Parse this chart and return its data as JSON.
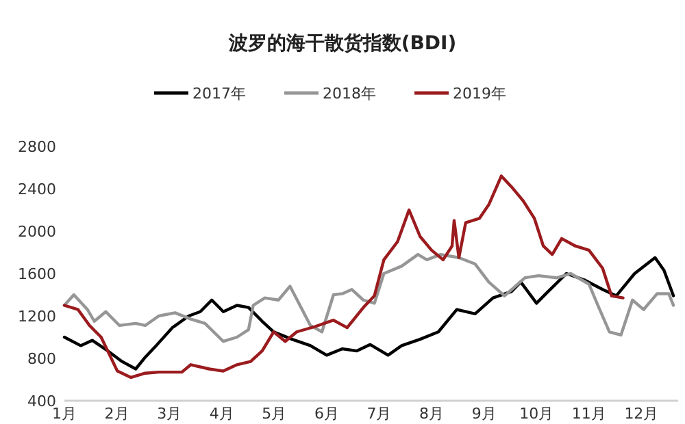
{
  "chart_data": {
    "type": "line",
    "title": "波罗的海干散货指数(BDI)",
    "xlim": [
      1,
      12.7
    ],
    "xticks": [
      {
        "value": 1,
        "label": "1月"
      },
      {
        "value": 2,
        "label": "2月"
      },
      {
        "value": 3,
        "label": "3月"
      },
      {
        "value": 4,
        "label": "4月"
      },
      {
        "value": 5,
        "label": "5月"
      },
      {
        "value": 6,
        "label": "6月"
      },
      {
        "value": 7,
        "label": "7月"
      },
      {
        "value": 8,
        "label": "8月"
      },
      {
        "value": 9,
        "label": "9月"
      },
      {
        "value": 10,
        "label": "10月"
      },
      {
        "value": 11,
        "label": "11月"
      },
      {
        "value": 12,
        "label": "12月"
      }
    ],
    "ylim": [
      400,
      2800
    ],
    "yticks": [
      400,
      800,
      1200,
      1600,
      2000,
      2400,
      2800
    ],
    "legend": "top",
    "series": [
      {
        "name": "2017年",
        "color": "#000000",
        "x": [
          1.0,
          1.31,
          1.53,
          1.83,
          2.1,
          2.36,
          2.54,
          2.75,
          3.06,
          3.37,
          3.59,
          3.81,
          4.03,
          4.29,
          4.51,
          4.77,
          4.99,
          5.34,
          5.69,
          6.0,
          6.3,
          6.57,
          6.83,
          7.17,
          7.43,
          7.78,
          8.13,
          8.48,
          8.83,
          9.17,
          9.52,
          9.7,
          10.0,
          10.22,
          10.57,
          10.91,
          11.26,
          11.52,
          11.87,
          12.26,
          12.43,
          12.61
        ],
        "values": [
          1000,
          920,
          970,
          870,
          770,
          700,
          810,
          920,
          1090,
          1200,
          1240,
          1350,
          1240,
          1300,
          1280,
          1150,
          1050,
          980,
          920,
          830,
          890,
          870,
          930,
          830,
          920,
          980,
          1050,
          1260,
          1220,
          1370,
          1430,
          1520,
          1320,
          1430,
          1600,
          1540,
          1450,
          1390,
          1600,
          1750,
          1630,
          1390
        ]
      },
      {
        "name": "2018年",
        "color": "#969696",
        "x": [
          1.0,
          1.18,
          1.44,
          1.57,
          1.79,
          2.05,
          2.36,
          2.54,
          2.8,
          3.11,
          3.41,
          3.68,
          4.03,
          4.29,
          4.51,
          4.6,
          4.82,
          5.08,
          5.3,
          5.47,
          5.69,
          5.91,
          6.13,
          6.3,
          6.48,
          6.7,
          6.91,
          7.09,
          7.43,
          7.74,
          7.91,
          8.17,
          8.52,
          8.83,
          9.09,
          9.39,
          9.78,
          10.04,
          10.39,
          10.65,
          11.0,
          11.17,
          11.39,
          11.61,
          11.83,
          12.04,
          12.3,
          12.52,
          12.61
        ],
        "values": [
          1300,
          1400,
          1260,
          1150,
          1240,
          1110,
          1130,
          1110,
          1200,
          1230,
          1170,
          1130,
          960,
          1000,
          1070,
          1300,
          1370,
          1350,
          1480,
          1320,
          1110,
          1050,
          1400,
          1410,
          1450,
          1350,
          1320,
          1600,
          1670,
          1780,
          1730,
          1780,
          1750,
          1690,
          1520,
          1390,
          1560,
          1580,
          1560,
          1600,
          1500,
          1300,
          1050,
          1020,
          1350,
          1260,
          1410,
          1410,
          1300
        ]
      },
      {
        "name": "2019年",
        "color": "#9b1b1e",
        "x": [
          1.0,
          1.26,
          1.48,
          1.7,
          2.01,
          2.27,
          2.54,
          2.8,
          3.24,
          3.41,
          3.76,
          4.03,
          4.29,
          4.55,
          4.77,
          4.99,
          5.21,
          5.43,
          5.78,
          6.13,
          6.39,
          6.7,
          6.91,
          7.09,
          7.35,
          7.57,
          7.78,
          8.0,
          8.22,
          8.39,
          8.43,
          8.52,
          8.65,
          8.91,
          9.09,
          9.33,
          9.52,
          9.74,
          9.96,
          10.13,
          10.3,
          10.48,
          10.74,
          11.0,
          11.26,
          11.43,
          11.65
        ],
        "values": [
          1300,
          1260,
          1110,
          1000,
          680,
          620,
          660,
          670,
          670,
          740,
          700,
          680,
          740,
          770,
          870,
          1050,
          960,
          1050,
          1100,
          1160,
          1090,
          1280,
          1390,
          1730,
          1900,
          2200,
          1950,
          1820,
          1730,
          1860,
          2100,
          1750,
          2080,
          2120,
          2250,
          2520,
          2420,
          2290,
          2120,
          1860,
          1780,
          1930,
          1860,
          1820,
          1650,
          1390,
          1370
        ]
      }
    ]
  }
}
